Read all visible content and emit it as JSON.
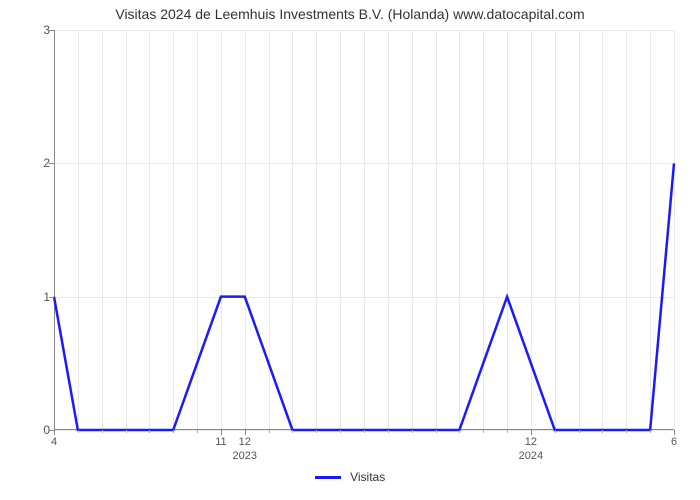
{
  "title": "Visitas 2024 de Leemhuis Investments B.V. (Holanda) www.datocapital.com",
  "chart": {
    "type": "line",
    "background_color": "#ffffff",
    "grid_color": "#e8e8e8",
    "axis_color": "#888888",
    "title_fontsize": 14,
    "label_fontsize": 12,
    "ylim": [
      0,
      3
    ],
    "yticks": [
      0,
      1,
      2,
      3
    ],
    "x_categories_per_year": 12,
    "x_start_month": 4,
    "x_years": [
      "2023",
      "2024"
    ],
    "x_tick_labels": [
      {
        "pos": 0,
        "label": "4"
      },
      {
        "pos": 7,
        "label": "11"
      },
      {
        "pos": 8,
        "label": "12"
      },
      {
        "pos": 20,
        "label": "12"
      },
      {
        "pos": 26,
        "label": "6"
      }
    ],
    "x_year_markers": [
      {
        "pos": 8,
        "label": "2023"
      },
      {
        "pos": 20,
        "label": "2024"
      }
    ],
    "series": {
      "name": "Visitas",
      "color": "#1a1aff",
      "line_width": 2.5,
      "values": [
        1,
        0,
        0,
        0,
        0,
        0,
        0.5,
        1,
        1,
        0.5,
        0,
        0,
        0,
        0,
        0,
        0,
        0,
        0,
        0.5,
        1,
        0.5,
        0,
        0,
        0,
        0,
        0,
        2
      ]
    },
    "legend": {
      "label": "Visitas"
    }
  }
}
